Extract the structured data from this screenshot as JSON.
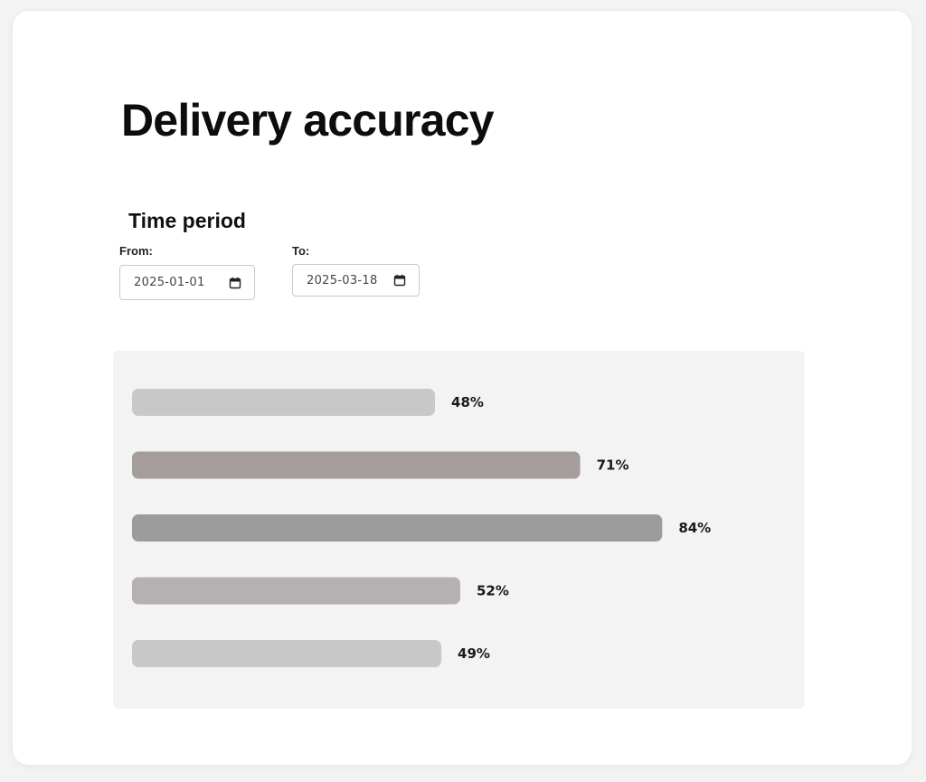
{
  "page": {
    "title": "Delivery accuracy"
  },
  "time_period": {
    "heading": "Time period",
    "from": {
      "label": "From:",
      "value": "2025-01-01"
    },
    "to": {
      "label": "To:",
      "value": "2025-03-18"
    }
  },
  "chart_data": {
    "type": "bar",
    "orientation": "horizontal",
    "values": [
      48,
      71,
      84,
      52,
      49
    ],
    "data_labels": [
      "48%",
      "71%",
      "84%",
      "52%",
      "49%"
    ],
    "bar_colors": [
      "#c8c8c8",
      "#a59c9c",
      "#9c9c9c",
      "#b7b0b0",
      "#c8c8c8"
    ],
    "background": "#f3f3f3",
    "grid": false,
    "legend": "none"
  },
  "icons": {
    "date_picker": "calendar-icon"
  }
}
